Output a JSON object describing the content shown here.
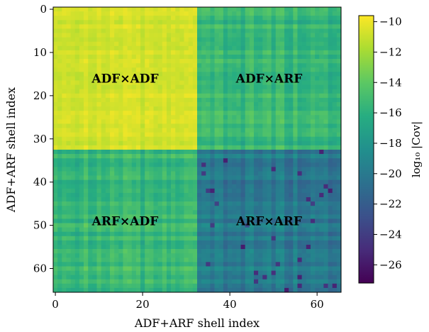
{
  "chart_data": {
    "type": "heatmap",
    "title": "",
    "xlabel": "ADF+ARF shell index",
    "ylabel": "ADF+ARF shell index",
    "matrix_size": 66,
    "block_split": 33,
    "xlim": [
      -0.5,
      65.5
    ],
    "ylim": [
      65.5,
      -0.5
    ],
    "x_ticks": [
      0,
      20,
      40,
      60
    ],
    "y_ticks": [
      0,
      10,
      20,
      30,
      40,
      50,
      60
    ],
    "block_mean_log10_values": {
      "ADF_ADF": -10.8,
      "ADF_ARF": -15.5,
      "ARF_ADF": -15.5,
      "ARF_ARF": -20.0
    },
    "value_range": [
      -27.2,
      -9.6
    ],
    "colormap": "viridis",
    "colorbar": {
      "label": "log₁₀ |Cov|",
      "ticks": [
        -10,
        -12,
        -14,
        -16,
        -18,
        -20,
        -22,
        -24,
        -26
      ],
      "tick_labels": [
        "−10",
        "−12",
        "−14",
        "−16",
        "−18",
        "−20",
        "−22",
        "−24",
        "−26"
      ]
    },
    "annotations": [
      "ADF×ADF",
      "ADF×ARF",
      "ARF×ADF",
      "ARF×ARF"
    ],
    "grid": false
  }
}
